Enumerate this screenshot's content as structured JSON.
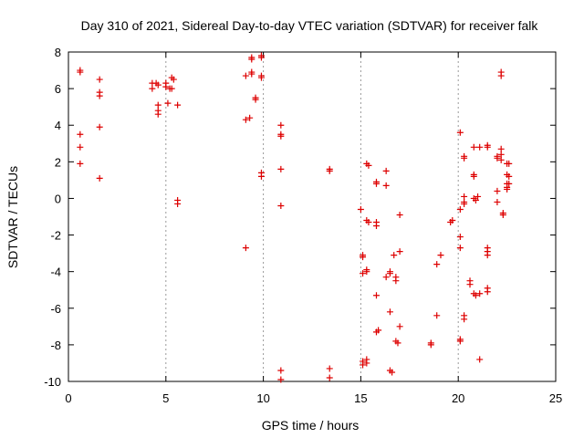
{
  "chart_data": {
    "type": "scatter",
    "title": "Day 310 of 2021, Sidereal Day-to-day VTEC variation (SDTVAR) for receiver falk",
    "xlabel": "GPS time / hours",
    "ylabel": "SDTVAR / TECUs",
    "xlim": [
      0,
      25
    ],
    "ylim": [
      -10,
      8
    ],
    "xticks": [
      0,
      5,
      10,
      15,
      20,
      25
    ],
    "yticks": [
      -10,
      -8,
      -6,
      -4,
      -2,
      0,
      2,
      4,
      6,
      8
    ],
    "grid": "vertical dashed lines at 5, 10, 15, 20",
    "marker": "plus",
    "color": "#dd0000",
    "series": [
      {
        "name": "SDTVAR",
        "points": [
          [
            0.6,
            7.0
          ],
          [
            0.6,
            6.9
          ],
          [
            0.6,
            3.5
          ],
          [
            0.6,
            2.8
          ],
          [
            0.6,
            1.9
          ],
          [
            1.6,
            6.5
          ],
          [
            1.6,
            5.8
          ],
          [
            1.6,
            5.6
          ],
          [
            1.6,
            3.9
          ],
          [
            1.6,
            1.1
          ],
          [
            4.3,
            6.3
          ],
          [
            4.3,
            6.0
          ],
          [
            4.5,
            6.3
          ],
          [
            4.6,
            6.2
          ],
          [
            4.6,
            5.1
          ],
          [
            4.6,
            4.8
          ],
          [
            4.6,
            4.6
          ],
          [
            5.0,
            6.3
          ],
          [
            5.0,
            6.1
          ],
          [
            5.1,
            5.2
          ],
          [
            5.2,
            6.0
          ],
          [
            5.3,
            6.6
          ],
          [
            5.4,
            6.5
          ],
          [
            5.3,
            6.0
          ],
          [
            5.6,
            5.1
          ],
          [
            5.6,
            -0.1
          ],
          [
            5.6,
            -0.3
          ],
          [
            9.1,
            6.7
          ],
          [
            9.1,
            4.3
          ],
          [
            9.1,
            -2.7
          ],
          [
            9.3,
            4.4
          ],
          [
            9.4,
            7.7
          ],
          [
            9.4,
            7.6
          ],
          [
            9.4,
            6.9
          ],
          [
            9.4,
            6.8
          ],
          [
            9.6,
            5.5
          ],
          [
            9.6,
            5.4
          ],
          [
            9.9,
            7.8
          ],
          [
            9.9,
            7.7
          ],
          [
            9.9,
            6.7
          ],
          [
            9.9,
            6.6
          ],
          [
            9.9,
            1.4
          ],
          [
            9.9,
            1.2
          ],
          [
            10.9,
            4.0
          ],
          [
            10.9,
            3.5
          ],
          [
            10.9,
            3.4
          ],
          [
            10.9,
            1.6
          ],
          [
            10.9,
            -0.4
          ],
          [
            10.9,
            -9.4
          ],
          [
            10.9,
            -9.9
          ],
          [
            13.4,
            1.6
          ],
          [
            13.4,
            1.5
          ],
          [
            13.4,
            -9.3
          ],
          [
            13.4,
            -9.8
          ],
          [
            15.0,
            -0.6
          ],
          [
            15.1,
            -3.1
          ],
          [
            15.1,
            -3.2
          ],
          [
            15.1,
            -4.1
          ],
          [
            15.1,
            -8.9
          ],
          [
            15.1,
            -9.1
          ],
          [
            15.3,
            -4.0
          ],
          [
            15.3,
            -3.9
          ],
          [
            15.3,
            -8.8
          ],
          [
            15.3,
            -9.0
          ],
          [
            15.3,
            1.9
          ],
          [
            15.4,
            1.8
          ],
          [
            15.3,
            -1.2
          ],
          [
            15.4,
            -1.3
          ],
          [
            15.8,
            0.9
          ],
          [
            15.8,
            0.8
          ],
          [
            15.8,
            -1.3
          ],
          [
            15.8,
            -1.5
          ],
          [
            15.8,
            -5.3
          ],
          [
            15.8,
            -7.3
          ],
          [
            15.9,
            -7.2
          ],
          [
            16.3,
            1.5
          ],
          [
            16.3,
            0.7
          ],
          [
            16.3,
            -4.3
          ],
          [
            16.5,
            -4.0
          ],
          [
            16.5,
            -4.1
          ],
          [
            16.5,
            -6.2
          ],
          [
            16.5,
            -9.4
          ],
          [
            16.6,
            -9.5
          ],
          [
            16.7,
            -3.1
          ],
          [
            16.8,
            -4.3
          ],
          [
            16.8,
            -4.5
          ],
          [
            16.8,
            -7.8
          ],
          [
            16.9,
            -7.9
          ],
          [
            17.0,
            -0.9
          ],
          [
            17.0,
            -2.9
          ],
          [
            17.0,
            -7.0
          ],
          [
            18.6,
            -7.9
          ],
          [
            18.6,
            -8.0
          ],
          [
            18.9,
            -6.4
          ],
          [
            18.9,
            -3.6
          ],
          [
            19.1,
            -3.1
          ],
          [
            19.6,
            -1.3
          ],
          [
            19.7,
            -1.2
          ],
          [
            20.1,
            3.6
          ],
          [
            20.1,
            -0.6
          ],
          [
            20.1,
            -2.1
          ],
          [
            20.1,
            -2.7
          ],
          [
            20.1,
            -7.7
          ],
          [
            20.1,
            -7.8
          ],
          [
            20.3,
            2.3
          ],
          [
            20.3,
            2.2
          ],
          [
            20.3,
            0.1
          ],
          [
            20.3,
            -0.2
          ],
          [
            20.3,
            -0.3
          ],
          [
            20.3,
            -6.4
          ],
          [
            20.3,
            -6.6
          ],
          [
            20.6,
            -4.5
          ],
          [
            20.6,
            -4.7
          ],
          [
            20.8,
            2.8
          ],
          [
            20.8,
            1.3
          ],
          [
            20.8,
            1.2
          ],
          [
            20.8,
            0.0
          ],
          [
            20.9,
            -0.1
          ],
          [
            20.8,
            -5.2
          ],
          [
            20.9,
            -5.3
          ],
          [
            21.0,
            0.1
          ],
          [
            21.1,
            2.8
          ],
          [
            21.1,
            -5.2
          ],
          [
            21.1,
            -8.8
          ],
          [
            21.5,
            2.9
          ],
          [
            21.5,
            2.8
          ],
          [
            21.5,
            -2.7
          ],
          [
            21.5,
            -2.9
          ],
          [
            21.5,
            -3.1
          ],
          [
            21.5,
            -4.9
          ],
          [
            21.5,
            -5.1
          ],
          [
            22.0,
            2.3
          ],
          [
            22.0,
            2.2
          ],
          [
            22.0,
            0.4
          ],
          [
            22.0,
            -0.2
          ],
          [
            22.2,
            6.9
          ],
          [
            22.2,
            6.7
          ],
          [
            22.2,
            2.7
          ],
          [
            22.2,
            2.4
          ],
          [
            22.2,
            2.1
          ],
          [
            22.3,
            -0.8
          ],
          [
            22.3,
            -0.9
          ],
          [
            22.5,
            1.9
          ],
          [
            22.5,
            1.3
          ],
          [
            22.6,
            1.2
          ],
          [
            22.5,
            0.8
          ],
          [
            22.5,
            0.6
          ],
          [
            22.5,
            0.5
          ],
          [
            22.6,
            1.9
          ],
          [
            22.6,
            0.8
          ]
        ]
      }
    ]
  }
}
